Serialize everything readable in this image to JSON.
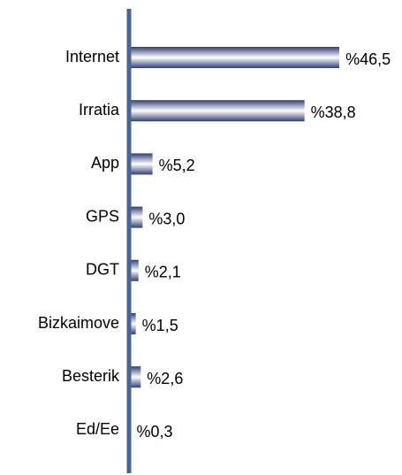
{
  "chart_data": {
    "type": "bar",
    "orientation": "horizontal",
    "categories": [
      "Internet",
      "Irratia",
      "App",
      "GPS",
      "DGT",
      "Bizkaimove",
      "Besterik",
      "Ed/Ee"
    ],
    "values": [
      46.5,
      38.8,
      5.2,
      3.0,
      2.1,
      1.5,
      2.6,
      0.3
    ],
    "value_labels": [
      "%46,5",
      "%38,8",
      "%5,2",
      "%3,0",
      "%2,1",
      "%1,5",
      "%2,6",
      "%0,3"
    ],
    "color": "#2e3f73",
    "axis_color": "#4a6496"
  }
}
